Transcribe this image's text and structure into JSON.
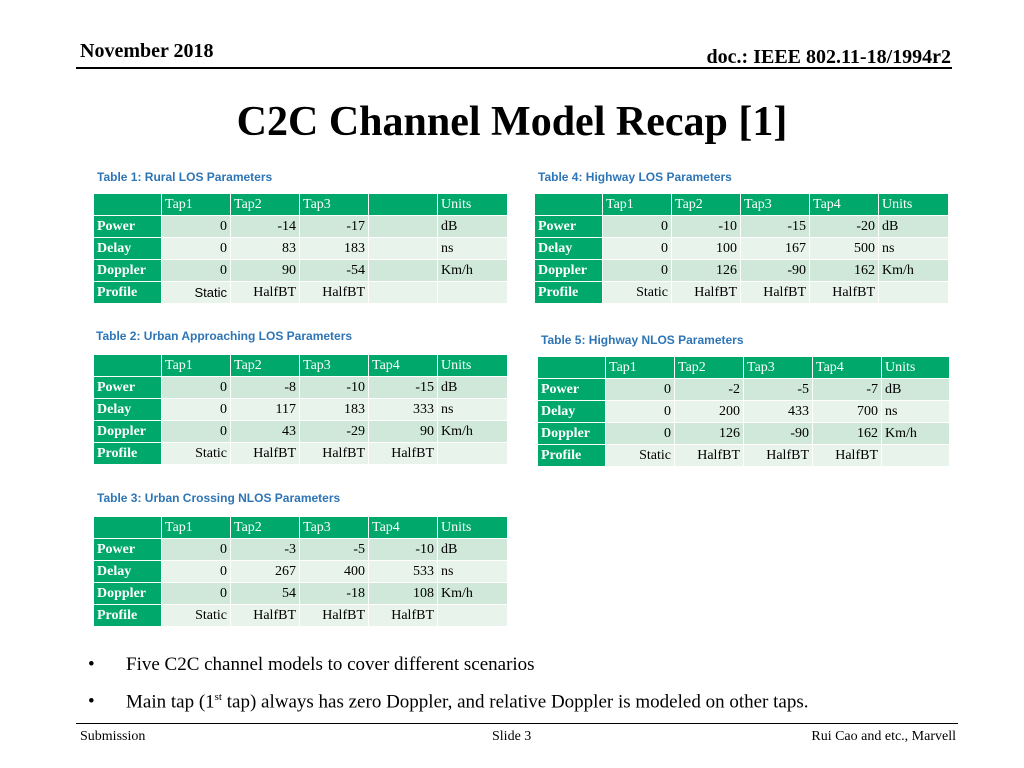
{
  "header": {
    "date": "November 2018",
    "doc": "doc.: IEEE 802.11-18/1994r2"
  },
  "title": "C2C Channel Model Recap [1]",
  "tables": {
    "t1": {
      "caption": "Table 1: Rural LOS Parameters",
      "headers": [
        "",
        "Tap1",
        "Tap2",
        "Tap3",
        "",
        "Units"
      ],
      "rows": [
        [
          "Power",
          "0",
          "-14",
          "-17",
          "",
          "dB"
        ],
        [
          "Delay",
          "0",
          "83",
          "183",
          "",
          "ns"
        ],
        [
          "Doppler",
          "0",
          "90",
          "-54",
          "",
          "Km/h"
        ],
        [
          "Profile",
          "Static",
          "HalfBT",
          "HalfBT",
          "",
          ""
        ]
      ]
    },
    "t2": {
      "caption": "Table 2: Urban Approaching LOS Parameters",
      "headers": [
        "",
        "Tap1",
        "Tap2",
        "Tap3",
        "Tap4",
        "Units"
      ],
      "rows": [
        [
          "Power",
          "0",
          "-8",
          "-10",
          "-15",
          "dB"
        ],
        [
          "Delay",
          "0",
          "117",
          "183",
          "333",
          "ns"
        ],
        [
          "Doppler",
          "0",
          "43",
          "-29",
          "90",
          "Km/h"
        ],
        [
          "Profile",
          "Static",
          "HalfBT",
          "HalfBT",
          "HalfBT",
          ""
        ]
      ]
    },
    "t3": {
      "caption": "Table 3: Urban Crossing NLOS Parameters",
      "headers": [
        "",
        "Tap1",
        "Tap2",
        "Tap3",
        "Tap4",
        "Units"
      ],
      "rows": [
        [
          "Power",
          "0",
          "-3",
          "-5",
          "-10",
          "dB"
        ],
        [
          "Delay",
          "0",
          "267",
          "400",
          "533",
          "ns"
        ],
        [
          "Doppler",
          "0",
          "54",
          "-18",
          "108",
          "Km/h"
        ],
        [
          "Profile",
          "Static",
          "HalfBT",
          "HalfBT",
          "HalfBT",
          ""
        ]
      ]
    },
    "t4": {
      "caption": "Table 4: Highway LOS Parameters",
      "headers": [
        "",
        "Tap1",
        "Tap2",
        "Tap3",
        "Tap4",
        "Units"
      ],
      "rows": [
        [
          "Power",
          "0",
          "-10",
          "-15",
          "-20",
          "dB"
        ],
        [
          "Delay",
          "0",
          "100",
          "167",
          "500",
          "ns"
        ],
        [
          "Doppler",
          "0",
          "126",
          "-90",
          "162",
          "Km/h"
        ],
        [
          "Profile",
          "Static",
          "HalfBT",
          "HalfBT",
          "HalfBT",
          ""
        ]
      ]
    },
    "t5": {
      "caption": "Table 5: Highway NLOS Parameters",
      "headers": [
        "",
        "Tap1",
        "Tap2",
        "Tap3",
        "Tap4",
        "Units"
      ],
      "rows": [
        [
          "Power",
          "0",
          "-2",
          "-5",
          "-7",
          "dB"
        ],
        [
          "Delay",
          "0",
          "200",
          "433",
          "700",
          "ns"
        ],
        [
          "Doppler",
          "0",
          "126",
          "-90",
          "162",
          "Km/h"
        ],
        [
          "Profile",
          "Static",
          "HalfBT",
          "HalfBT",
          "HalfBT",
          ""
        ]
      ]
    }
  },
  "bullets": {
    "b1": "Five C2C channel models to cover different scenarios",
    "b2_pre": "Main tap (1",
    "b2_sup": "st",
    "b2_post": " tap) always has zero Doppler, and relative Doppler is modeled on other taps.",
    "marker": "•"
  },
  "footer": {
    "left": "Submission",
    "center": "Slide 3",
    "right": "Rui Cao and etc., Marvell"
  }
}
